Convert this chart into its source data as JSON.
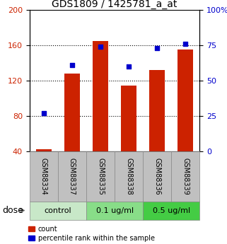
{
  "title": "GDS1809 / 1425781_a_at",
  "samples": [
    "GSM88334",
    "GSM88337",
    "GSM88335",
    "GSM88338",
    "GSM88336",
    "GSM88339"
  ],
  "bar_values": [
    42,
    128,
    165,
    114,
    132,
    155
  ],
  "dot_values": [
    27,
    61,
    74,
    60,
    73,
    76
  ],
  "ylim_left": [
    40,
    200
  ],
  "ylim_right": [
    0,
    100
  ],
  "yticks_left": [
    40,
    80,
    120,
    160,
    200
  ],
  "yticks_right": [
    0,
    25,
    50,
    75,
    100
  ],
  "bar_color": "#cc2200",
  "dot_color": "#0000cc",
  "bar_bottom": 40,
  "group_spans": [
    {
      "label": "control",
      "start": 0,
      "end": 1,
      "color": "#c8e8c8"
    },
    {
      "label": "0.1 ug/ml",
      "start": 2,
      "end": 3,
      "color": "#88dd88"
    },
    {
      "label": "0.5 ug/ml",
      "start": 4,
      "end": 5,
      "color": "#44cc44"
    }
  ],
  "sample_bg_color": "#c0c0c0",
  "title_fontsize": 10,
  "tick_fontsize": 8,
  "sample_fontsize": 7,
  "group_fontsize": 8,
  "legend_fontsize": 7,
  "dose_fontsize": 9,
  "legend_count": "count",
  "legend_percentile": "percentile rank within the sample"
}
